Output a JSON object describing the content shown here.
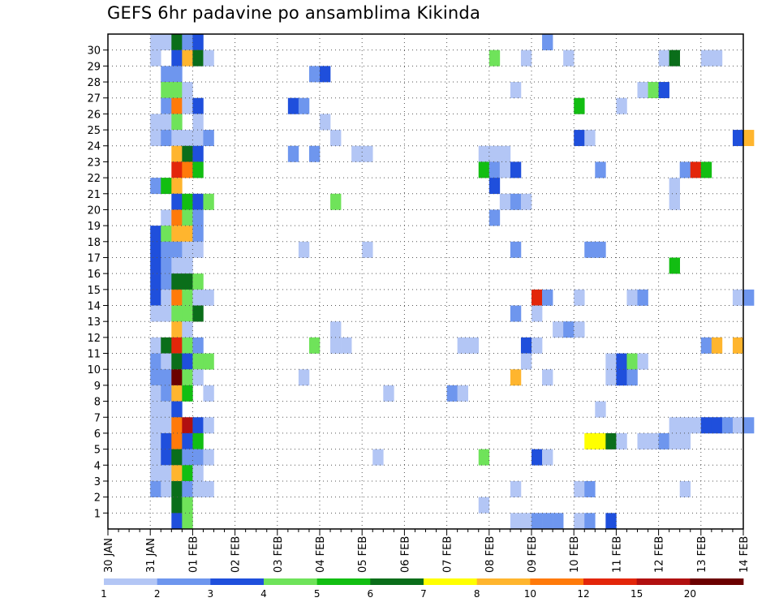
{
  "chart_data": {
    "type": "heatmap",
    "title": "GEFS 6hr padavine po ansamblima Kikinda",
    "x_axis": {
      "tick_labels": [
        "30 JAN",
        "31 JAN",
        "01 FEB",
        "02 FEB",
        "03 FEB",
        "04 FEB",
        "05 FEB",
        "06 FEB",
        "07 FEB",
        "08 FEB",
        "09 FEB",
        "10 FEB",
        "11 FEB",
        "12 FEB",
        "13 FEB",
        "14 FEB"
      ],
      "range_days": [
        0,
        15
      ],
      "step": "6hr"
    },
    "y_axis": {
      "tick_labels": [
        "1",
        "2",
        "3",
        "4",
        "5",
        "6",
        "7",
        "8",
        "9",
        "10",
        "11",
        "12",
        "13",
        "14",
        "15",
        "16",
        "17",
        "18",
        "19",
        "20",
        "21",
        "22",
        "23",
        "24",
        "25",
        "26",
        "27",
        "28",
        "29",
        "30"
      ],
      "range": [
        0,
        30
      ]
    },
    "grid": "dotted",
    "colorbar": {
      "labels": [
        "1",
        "2",
        "3",
        "4",
        "5",
        "6",
        "7",
        "8",
        "10",
        "12",
        "15",
        "20"
      ],
      "colors": [
        "#b3c6f5",
        "#6e96ee",
        "#1f4fdc",
        "#6fe35a",
        "#12be12",
        "#0a6e1a",
        "#ffff00",
        "#ffb52e",
        "#ff7a0a",
        "#e3260a",
        "#b11010",
        "#6b0000"
      ]
    },
    "cells": [
      [
        4,
        30,
        0
      ],
      [
        5,
        30,
        0
      ],
      [
        6,
        30,
        5
      ],
      [
        7,
        30,
        1
      ],
      [
        8,
        30,
        2
      ],
      [
        41,
        30,
        1
      ],
      [
        4,
        29,
        0
      ],
      [
        6,
        29,
        2
      ],
      [
        7,
        29,
        7
      ],
      [
        8,
        29,
        5
      ],
      [
        9,
        29,
        0
      ],
      [
        36,
        29,
        3
      ],
      [
        39,
        29,
        0
      ],
      [
        43,
        29,
        0
      ],
      [
        52,
        29,
        0
      ],
      [
        53,
        29,
        5
      ],
      [
        56,
        29,
        0
      ],
      [
        57,
        29,
        0
      ],
      [
        5,
        28,
        1
      ],
      [
        6,
        28,
        1
      ],
      [
        19,
        28,
        1
      ],
      [
        20,
        28,
        2
      ],
      [
        5,
        27,
        3
      ],
      [
        6,
        27,
        3
      ],
      [
        7,
        27,
        0
      ],
      [
        38,
        27,
        0
      ],
      [
        50,
        27,
        0
      ],
      [
        51,
        27,
        3
      ],
      [
        52,
        27,
        2
      ],
      [
        5,
        26,
        1
      ],
      [
        6,
        26,
        8
      ],
      [
        7,
        26,
        0
      ],
      [
        8,
        26,
        2
      ],
      [
        17,
        26,
        2
      ],
      [
        18,
        26,
        1
      ],
      [
        44,
        26,
        4
      ],
      [
        48,
        26,
        0
      ],
      [
        4,
        25,
        0
      ],
      [
        5,
        25,
        0
      ],
      [
        6,
        25,
        3
      ],
      [
        8,
        25,
        0
      ],
      [
        20,
        25,
        0
      ],
      [
        4,
        24,
        0
      ],
      [
        5,
        24,
        1
      ],
      [
        6,
        24,
        0
      ],
      [
        7,
        24,
        0
      ],
      [
        8,
        24,
        0
      ],
      [
        9,
        24,
        1
      ],
      [
        21,
        24,
        0
      ],
      [
        44,
        24,
        2
      ],
      [
        45,
        24,
        0
      ],
      [
        59,
        24,
        2
      ],
      [
        60,
        24,
        7
      ],
      [
        6,
        23,
        7
      ],
      [
        7,
        23,
        5
      ],
      [
        8,
        23,
        2
      ],
      [
        17,
        23,
        1
      ],
      [
        19,
        23,
        1
      ],
      [
        23,
        23,
        0
      ],
      [
        24,
        23,
        0
      ],
      [
        35,
        23,
        0
      ],
      [
        36,
        23,
        0
      ],
      [
        37,
        23,
        0
      ],
      [
        6,
        22,
        9
      ],
      [
        7,
        22,
        8
      ],
      [
        8,
        22,
        4
      ],
      [
        35,
        22,
        4
      ],
      [
        36,
        22,
        1
      ],
      [
        37,
        22,
        0
      ],
      [
        38,
        22,
        2
      ],
      [
        46,
        22,
        1
      ],
      [
        54,
        22,
        1
      ],
      [
        55,
        22,
        9
      ],
      [
        56,
        22,
        4
      ],
      [
        4,
        21,
        1
      ],
      [
        5,
        21,
        4
      ],
      [
        6,
        21,
        7
      ],
      [
        36,
        21,
        2
      ],
      [
        53,
        21,
        0
      ],
      [
        6,
        20,
        2
      ],
      [
        7,
        20,
        4
      ],
      [
        8,
        20,
        2
      ],
      [
        9,
        20,
        3
      ],
      [
        21,
        20,
        3
      ],
      [
        37,
        20,
        0
      ],
      [
        38,
        20,
        1
      ],
      [
        39,
        20,
        0
      ],
      [
        53,
        20,
        0
      ],
      [
        5,
        19,
        0
      ],
      [
        6,
        19,
        8
      ],
      [
        7,
        19,
        3
      ],
      [
        8,
        19,
        1
      ],
      [
        36,
        19,
        1
      ],
      [
        4,
        18,
        2
      ],
      [
        5,
        18,
        3
      ],
      [
        6,
        18,
        7
      ],
      [
        7,
        18,
        7
      ],
      [
        8,
        18,
        1
      ],
      [
        4,
        17,
        2
      ],
      [
        5,
        17,
        1
      ],
      [
        6,
        17,
        1
      ],
      [
        7,
        17,
        0
      ],
      [
        8,
        17,
        0
      ],
      [
        18,
        17,
        0
      ],
      [
        24,
        17,
        0
      ],
      [
        38,
        17,
        1
      ],
      [
        45,
        17,
        1
      ],
      [
        46,
        17,
        1
      ],
      [
        4,
        16,
        2
      ],
      [
        5,
        16,
        1
      ],
      [
        6,
        16,
        0
      ],
      [
        7,
        16,
        0
      ],
      [
        53,
        16,
        4
      ],
      [
        4,
        15,
        2
      ],
      [
        5,
        15,
        1
      ],
      [
        6,
        15,
        5
      ],
      [
        7,
        15,
        5
      ],
      [
        8,
        15,
        3
      ],
      [
        4,
        14,
        2
      ],
      [
        5,
        14,
        0
      ],
      [
        6,
        14,
        8
      ],
      [
        7,
        14,
        3
      ],
      [
        8,
        14,
        0
      ],
      [
        9,
        14,
        0
      ],
      [
        40,
        14,
        9
      ],
      [
        41,
        14,
        1
      ],
      [
        44,
        14,
        0
      ],
      [
        49,
        14,
        0
      ],
      [
        50,
        14,
        1
      ],
      [
        59,
        14,
        0
      ],
      [
        60,
        14,
        1
      ],
      [
        4,
        13,
        0
      ],
      [
        5,
        13,
        0
      ],
      [
        6,
        13,
        3
      ],
      [
        7,
        13,
        3
      ],
      [
        8,
        13,
        5
      ],
      [
        38,
        13,
        1
      ],
      [
        40,
        13,
        0
      ],
      [
        6,
        12,
        7
      ],
      [
        7,
        12,
        0
      ],
      [
        21,
        12,
        0
      ],
      [
        42,
        12,
        0
      ],
      [
        43,
        12,
        1
      ],
      [
        44,
        12,
        0
      ],
      [
        4,
        11,
        0
      ],
      [
        5,
        11,
        5
      ],
      [
        6,
        11,
        9
      ],
      [
        7,
        11,
        3
      ],
      [
        8,
        11,
        1
      ],
      [
        19,
        11,
        3
      ],
      [
        21,
        11,
        0
      ],
      [
        22,
        11,
        0
      ],
      [
        33,
        11,
        0
      ],
      [
        34,
        11,
        0
      ],
      [
        39,
        11,
        2
      ],
      [
        40,
        11,
        0
      ],
      [
        56,
        11,
        1
      ],
      [
        57,
        11,
        7
      ],
      [
        59,
        11,
        7
      ],
      [
        4,
        10,
        1
      ],
      [
        5,
        10,
        0
      ],
      [
        6,
        10,
        5
      ],
      [
        7,
        10,
        2
      ],
      [
        8,
        10,
        3
      ],
      [
        9,
        10,
        3
      ],
      [
        39,
        10,
        0
      ],
      [
        47,
        10,
        0
      ],
      [
        48,
        10,
        2
      ],
      [
        49,
        10,
        3
      ],
      [
        50,
        10,
        0
      ],
      [
        4,
        9,
        1
      ],
      [
        5,
        9,
        1
      ],
      [
        6,
        9,
        11
      ],
      [
        7,
        9,
        3
      ],
      [
        8,
        9,
        0
      ],
      [
        18,
        9,
        0
      ],
      [
        38,
        9,
        7
      ],
      [
        41,
        9,
        0
      ],
      [
        47,
        9,
        0
      ],
      [
        48,
        9,
        2
      ],
      [
        49,
        9,
        1
      ],
      [
        4,
        8,
        0
      ],
      [
        5,
        8,
        1
      ],
      [
        6,
        8,
        7
      ],
      [
        7,
        8,
        4
      ],
      [
        9,
        8,
        0
      ],
      [
        26,
        8,
        0
      ],
      [
        32,
        8,
        1
      ],
      [
        33,
        8,
        0
      ],
      [
        4,
        7,
        0
      ],
      [
        5,
        7,
        0
      ],
      [
        6,
        7,
        2
      ],
      [
        46,
        7,
        0
      ],
      [
        4,
        6,
        0
      ],
      [
        5,
        6,
        0
      ],
      [
        6,
        6,
        8
      ],
      [
        7,
        6,
        10
      ],
      [
        8,
        6,
        2
      ],
      [
        9,
        6,
        0
      ],
      [
        53,
        6,
        0
      ],
      [
        54,
        6,
        0
      ],
      [
        55,
        6,
        0
      ],
      [
        56,
        6,
        2
      ],
      [
        57,
        6,
        2
      ],
      [
        58,
        6,
        1
      ],
      [
        59,
        6,
        0
      ],
      [
        60,
        6,
        1
      ],
      [
        4,
        5,
        0
      ],
      [
        5,
        5,
        2
      ],
      [
        6,
        5,
        8
      ],
      [
        7,
        5,
        2
      ],
      [
        8,
        5,
        4
      ],
      [
        45,
        5,
        6
      ],
      [
        46,
        5,
        6
      ],
      [
        47,
        5,
        5
      ],
      [
        48,
        5,
        0
      ],
      [
        50,
        5,
        0
      ],
      [
        51,
        5,
        0
      ],
      [
        52,
        5,
        1
      ],
      [
        53,
        5,
        0
      ],
      [
        54,
        5,
        0
      ],
      [
        4,
        4,
        0
      ],
      [
        5,
        4,
        2
      ],
      [
        6,
        4,
        5
      ],
      [
        7,
        4,
        1
      ],
      [
        8,
        4,
        1
      ],
      [
        9,
        4,
        0
      ],
      [
        25,
        4,
        0
      ],
      [
        35,
        4,
        3
      ],
      [
        40,
        4,
        2
      ],
      [
        41,
        4,
        0
      ],
      [
        4,
        3,
        0
      ],
      [
        5,
        3,
        0
      ],
      [
        6,
        3,
        7
      ],
      [
        7,
        3,
        4
      ],
      [
        8,
        3,
        0
      ],
      [
        4,
        2,
        1
      ],
      [
        5,
        2,
        0
      ],
      [
        6,
        2,
        5
      ],
      [
        7,
        2,
        1
      ],
      [
        8,
        2,
        0
      ],
      [
        9,
        2,
        0
      ],
      [
        38,
        2,
        0
      ],
      [
        44,
        2,
        0
      ],
      [
        45,
        2,
        1
      ],
      [
        54,
        2,
        0
      ],
      [
        6,
        1,
        5
      ],
      [
        7,
        1,
        3
      ],
      [
        35,
        1,
        0
      ],
      [
        6,
        0,
        2
      ],
      [
        7,
        0,
        3
      ],
      [
        38,
        0,
        0
      ],
      [
        39,
        0,
        0
      ],
      [
        40,
        0,
        1
      ],
      [
        41,
        0,
        1
      ],
      [
        42,
        0,
        1
      ],
      [
        44,
        0,
        0
      ],
      [
        45,
        0,
        1
      ],
      [
        47,
        0,
        2
      ]
    ]
  }
}
